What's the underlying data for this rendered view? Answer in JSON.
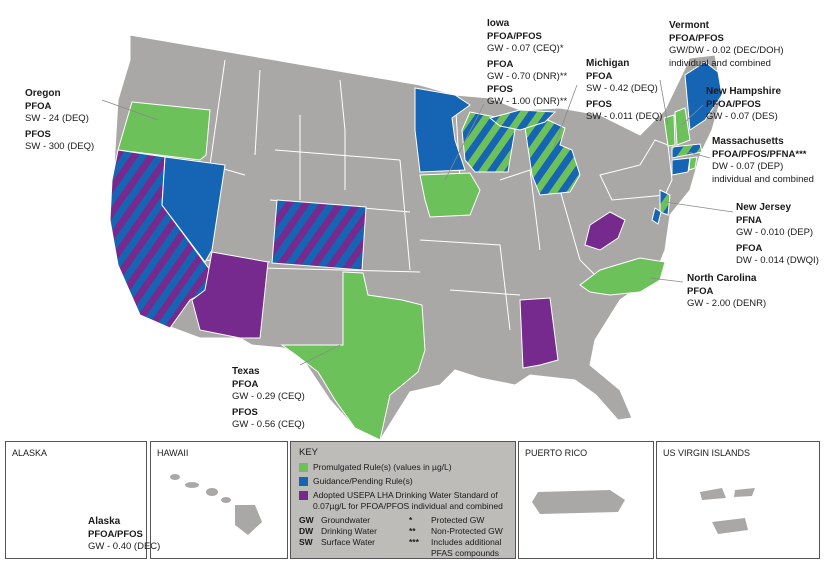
{
  "colors": {
    "promulgated": "#6cc15b",
    "guidance": "#1565b4",
    "adopted": "#762a8d",
    "base": "#a9a8a6",
    "border": "#ffffff",
    "leader": "#8a8a8a"
  },
  "labels": {
    "iowa": {
      "state": "Iowa",
      "lines": [
        {
          "chem": "PFOA/PFOS"
        },
        {
          "val": "GW - 0.07 (CEQ)*"
        },
        {
          "chem": "PFOA"
        },
        {
          "val": "GW - 0.70 (DNR)**"
        },
        {
          "chem": "PFOS"
        },
        {
          "val": "GW - 1.00 (DNR)**"
        }
      ]
    },
    "vermont": {
      "state": "Vermont",
      "lines": [
        {
          "chem": "PFOA/PFOS"
        },
        {
          "val": "GW/DW - 0.02 (DEC/DOH)"
        },
        {
          "val": "individual and combined"
        }
      ]
    },
    "oregon": {
      "state": "Oregon",
      "lines": [
        {
          "chem": "PFOA"
        },
        {
          "val": "SW - 24 (DEQ)"
        },
        {
          "chem": "PFOS"
        },
        {
          "val": "SW - 300 (DEQ)"
        }
      ]
    },
    "michigan": {
      "state": "Michigan",
      "lines": [
        {
          "chem": "PFOA"
        },
        {
          "val": "SW - 0.42 (DEQ)"
        },
        {
          "chem": "PFOS"
        },
        {
          "val": "SW - 0.011 (DEQ)"
        }
      ]
    },
    "new_hampshire": {
      "state": "New Hampshire",
      "lines": [
        {
          "chem": "PFOA/PFOS"
        },
        {
          "val": "GW - 0.07 (DES)"
        }
      ]
    },
    "massachusetts": {
      "state": "Massachusetts",
      "lines": [
        {
          "chem": "PFOA/PFOS/PFNA***"
        },
        {
          "val": "DW - 0.07 (DEP)"
        },
        {
          "val": "individual and combined"
        }
      ]
    },
    "new_jersey": {
      "state": "New Jersey",
      "lines": [
        {
          "chem": "PFNA"
        },
        {
          "val": "GW - 0.010 (DEP)"
        },
        {
          "chem": "PFOA"
        },
        {
          "val": "DW - 0.014 (DWQI)"
        }
      ]
    },
    "north_carolina": {
      "state": "North Carolina",
      "lines": [
        {
          "chem": "PFOA"
        },
        {
          "val": "GW - 2.00 (DENR)"
        }
      ]
    },
    "texas": {
      "state": "Texas",
      "lines": [
        {
          "chem": "PFOA"
        },
        {
          "val": "GW - 0.29 (CEQ)"
        },
        {
          "chem": "PFOS"
        },
        {
          "val": "GW - 0.56 (CEQ)"
        }
      ]
    },
    "alaska": {
      "state": "Alaska",
      "lines": [
        {
          "chem": "PFOA/PFOS"
        },
        {
          "val": "GW - 0.40 (DEC)"
        }
      ]
    }
  },
  "insets": {
    "alaska": "ALASKA",
    "hawaii": "HAWAII",
    "puerto_rico": "PUERTO RICO",
    "virgin_islands": "US VIRGIN ISLANDS"
  },
  "key": {
    "title": "KEY",
    "promulgated": "Promulgated Rule(s) (values in µg/L)",
    "guidance": "Guidance/Pending Rule(s)",
    "adopted_1": "Adopted USEPA LHA Drinking Water Standard of",
    "adopted_2": "0.07µg/L for PFOA/PFOS individual and combined",
    "gw_a": "GW",
    "gw_t": "Groundwater",
    "dw_a": "DW",
    "dw_t": "Drinking Water",
    "sw_a": "SW",
    "sw_t": "Surface Water",
    "s1_a": "*",
    "s1_t": "Protected GW",
    "s2_a": "**",
    "s2_t": "Non-Protected GW",
    "s3_a": "***",
    "s3_t1": "Includes additional",
    "s3_t2": "PFAS compounds"
  }
}
